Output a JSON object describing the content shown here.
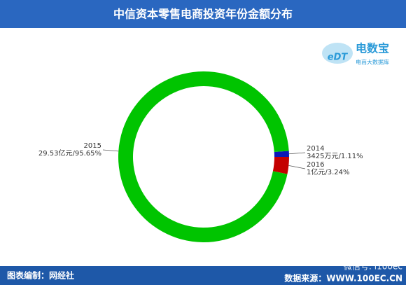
{
  "chart_data": {
    "type": "donut",
    "title": "中信资本零售电商投资年份金额分布",
    "categories": [
      "2014",
      "2015",
      "2016"
    ],
    "values": [
      1.11,
      95.65,
      3.24
    ],
    "value_labels": [
      "3425万元/1.11%",
      "29.53亿元/95.65%",
      "1亿元/3.24%"
    ],
    "colors": [
      "#0b18b8",
      "#00c400",
      "#c40000"
    ],
    "logo": {
      "mark": "eDT",
      "name": "电数宝",
      "tagline": "电商大数据库"
    },
    "footer": {
      "left": "图表编制：网经社",
      "right": "数据来源：WWW.100EC.CN",
      "watermark": "微信号: i100ec"
    }
  }
}
